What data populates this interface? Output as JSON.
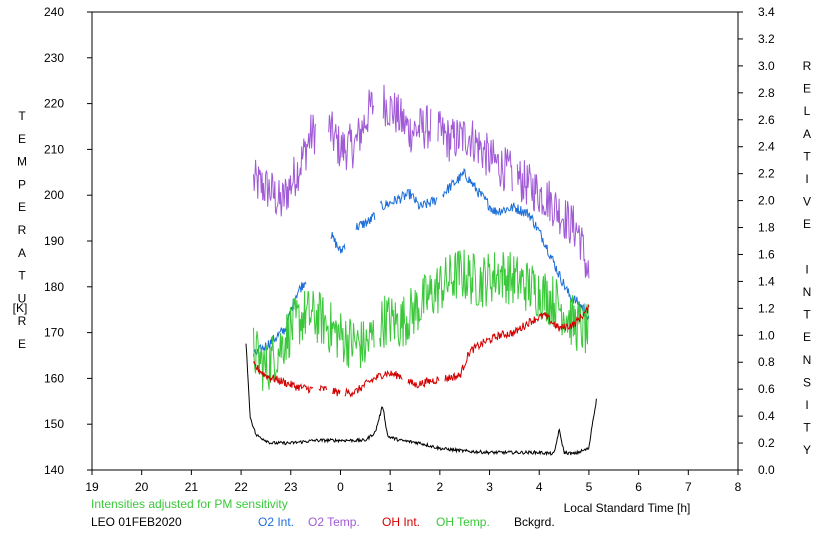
{
  "chart_data": {
    "type": "line",
    "left_axis": {
      "label": "TEMPERATURE",
      "unit": "[K]",
      "range": [
        140,
        240
      ],
      "ticks": [
        140,
        150,
        160,
        170,
        180,
        190,
        200,
        210,
        220,
        230,
        240
      ]
    },
    "right_axis": {
      "label": "RELATIVE INTENSITY",
      "range": [
        0.0,
        3.4
      ],
      "ticks": [
        "0.0",
        "0.2",
        "0.4",
        "0.6",
        "0.8",
        "1.0",
        "1.2",
        "1.4",
        "1.6",
        "1.8",
        "2.0",
        "2.2",
        "2.4",
        "2.6",
        "2.8",
        "3.0",
        "3.2",
        "3.4"
      ]
    },
    "x_axis": {
      "label": "Local Standard Time [h]",
      "range": [
        19,
        8
      ],
      "tick_labels": [
        "19",
        "20",
        "21",
        "22",
        "23",
        "0",
        "1",
        "2",
        "3",
        "4",
        "5",
        "6",
        "7",
        "8"
      ]
    },
    "note": "Intensities adjusted for PM sensitivity",
    "station": "LEO 01FEB2020",
    "legend": [
      {
        "name": "O2 Int.",
        "color": "#1e6fd9"
      },
      {
        "name": "O2 Temp.",
        "color": "#a05ad6"
      },
      {
        "name": "OH Int.",
        "color": "#d40000"
      },
      {
        "name": "OH Temp.",
        "color": "#3ac83a"
      },
      {
        "name": "Bckgrd.",
        "color": "#000000"
      }
    ],
    "series": [
      {
        "name": "O2 Temp.",
        "axis": "left",
        "color": "#a05ad6",
        "noise": 5,
        "x": [
          22.25,
          22.6,
          22.8,
          23.2,
          23.4,
          23.7,
          24.0,
          24.3,
          24.6,
          24.8,
          25.1,
          25.4,
          25.8,
          26.2,
          26.6,
          27.0,
          27.4,
          27.8,
          28.2,
          28.6,
          28.8,
          29.0
        ],
        "y": [
          203,
          201,
          198,
          207,
          213,
          216,
          210,
          211,
          219,
          221,
          218,
          214,
          215,
          212,
          213,
          208,
          205,
          202,
          199,
          194,
          192,
          182
        ],
        "gaps": [
          [
            23.52,
            23.75
          ],
          [
            24.68,
            24.85
          ],
          [
            25.82,
            25.95
          ],
          [
            27.46,
            27.55
          ]
        ]
      },
      {
        "name": "O2 Int.",
        "axis": "right",
        "color": "#1e6fd9",
        "noise": 0.04,
        "x": [
          22.25,
          22.6,
          22.9,
          23.1,
          23.5,
          23.8,
          24.0,
          24.3,
          24.6,
          24.8,
          25.1,
          25.4,
          25.6,
          25.9,
          26.2,
          26.5,
          26.8,
          27.1,
          27.5,
          27.8,
          28.1,
          28.4,
          28.6,
          28.9,
          29.0
        ],
        "y": [
          0.85,
          0.95,
          1.05,
          1.3,
          1.52,
          1.75,
          1.62,
          1.8,
          1.85,
          1.95,
          2.0,
          2.05,
          1.95,
          2.0,
          2.1,
          2.2,
          2.05,
          1.92,
          1.95,
          1.9,
          1.7,
          1.45,
          1.3,
          1.2,
          1.1
        ],
        "gaps": [
          [
            23.32,
            23.8
          ],
          [
            24.1,
            24.3
          ],
          [
            24.7,
            24.8
          ],
          [
            25.95,
            26.05
          ]
        ]
      },
      {
        "name": "OH Temp.",
        "axis": "left",
        "color": "#3ac83a",
        "noise": 6,
        "x": [
          22.25,
          22.5,
          22.8,
          23.0,
          23.3,
          23.6,
          23.9,
          24.2,
          24.5,
          24.9,
          25.2,
          25.6,
          26.0,
          26.4,
          26.8,
          27.2,
          27.6,
          28.0,
          28.4,
          28.7,
          29.0
        ],
        "y": [
          166,
          162,
          167,
          171,
          174,
          173,
          170,
          168,
          167,
          173,
          172,
          176,
          180,
          183,
          181,
          183,
          181,
          179,
          176,
          172,
          170
        ],
        "gaps": [
          [
            24.68,
            24.78
          ]
        ]
      },
      {
        "name": "OH Int.",
        "axis": "right",
        "color": "#d40000",
        "noise": 0.03,
        "x": [
          22.25,
          22.5,
          22.8,
          23.1,
          23.4,
          23.7,
          24.0,
          24.3,
          24.6,
          24.9,
          25.2,
          25.5,
          25.8,
          26.1,
          26.4,
          26.6,
          26.9,
          27.2,
          27.5,
          27.8,
          28.1,
          28.4,
          28.7,
          29.0
        ],
        "y": [
          0.78,
          0.7,
          0.66,
          0.62,
          0.6,
          0.6,
          0.57,
          0.58,
          0.66,
          0.72,
          0.7,
          0.63,
          0.66,
          0.68,
          0.7,
          0.88,
          0.95,
          1.0,
          1.02,
          1.1,
          1.15,
          1.05,
          1.08,
          1.2
        ],
        "gaps": [
          [
            23.45,
            23.55
          ],
          [
            23.72,
            23.82
          ],
          [
            24.0,
            24.08
          ],
          [
            25.25,
            25.35
          ],
          [
            26.0,
            26.1
          ]
        ]
      },
      {
        "name": "Bckgrd.",
        "axis": "right",
        "color": "#000000",
        "noise": 0.012,
        "x": [
          22.1,
          22.18,
          22.3,
          22.6,
          23.0,
          23.5,
          24.0,
          24.5,
          24.7,
          24.85,
          24.95,
          25.2,
          25.6,
          26.0,
          26.5,
          27.0,
          27.5,
          28.0,
          28.3,
          28.4,
          28.5,
          28.7,
          29.0,
          29.05,
          29.15
        ],
        "y": [
          0.95,
          0.4,
          0.26,
          0.2,
          0.2,
          0.22,
          0.22,
          0.22,
          0.28,
          0.48,
          0.25,
          0.22,
          0.2,
          0.16,
          0.14,
          0.13,
          0.13,
          0.13,
          0.12,
          0.3,
          0.13,
          0.12,
          0.16,
          0.3,
          0.52
        ],
        "gaps": []
      }
    ]
  }
}
